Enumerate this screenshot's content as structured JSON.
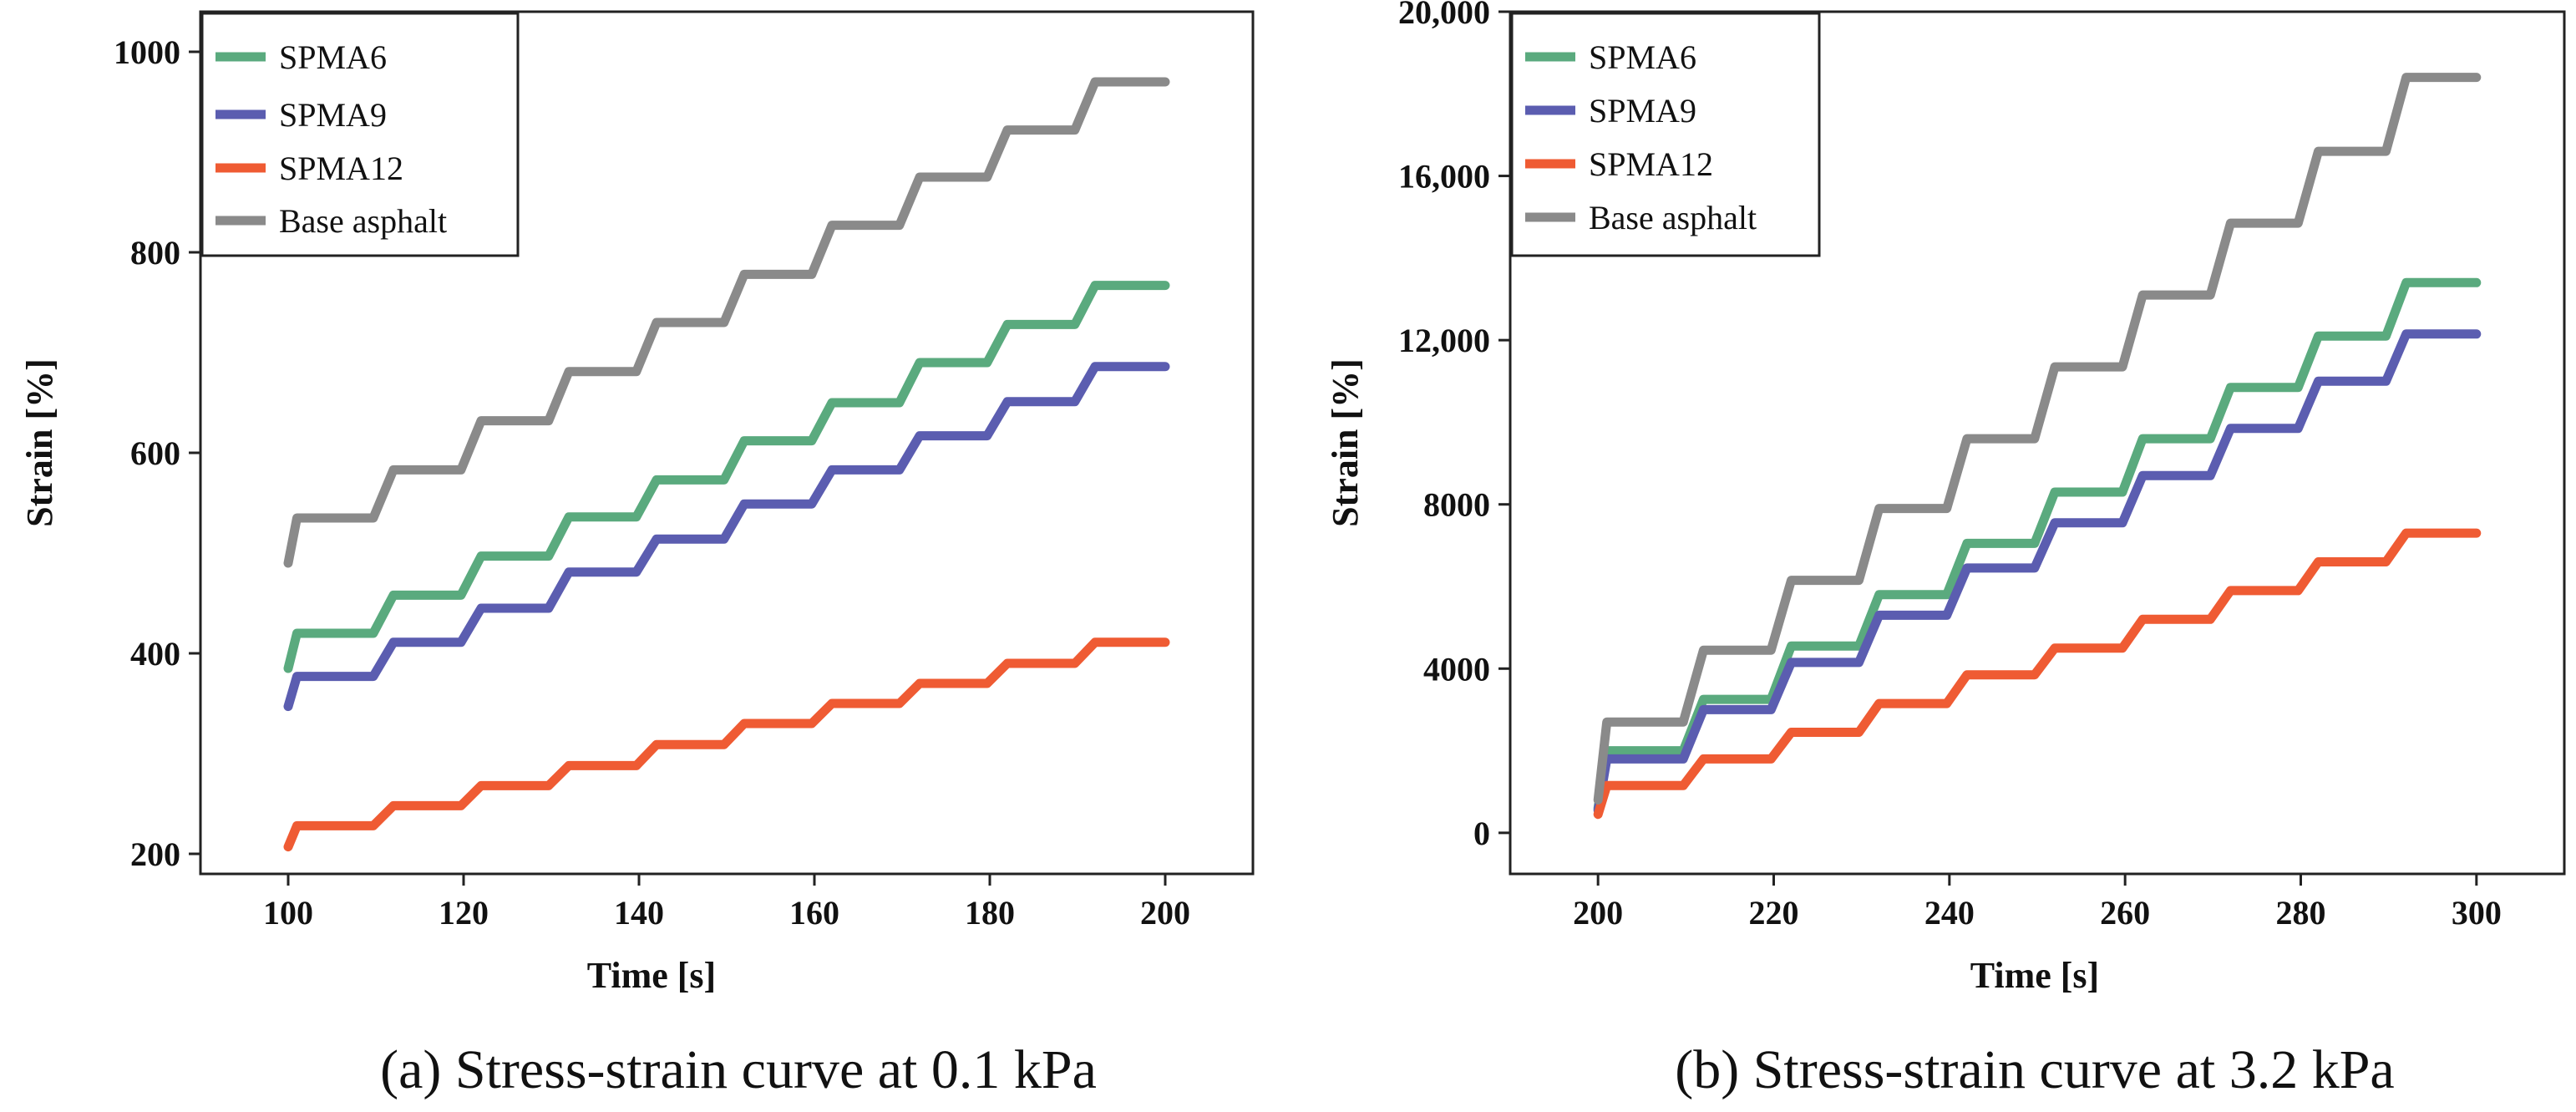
{
  "chart_data": [
    {
      "type": "line",
      "caption": "(a) Stress-strain curve at 0.1 kPa",
      "xlabel": "Time [s]",
      "ylabel": "Strain [%]",
      "xlim": [
        90,
        210
      ],
      "ylim": [
        180,
        1040
      ],
      "xticks": [
        100,
        120,
        140,
        160,
        180,
        200
      ],
      "xtick_labels": [
        "100",
        "120",
        "140",
        "160",
        "180",
        "200"
      ],
      "yticks": [
        200,
        400,
        600,
        800,
        1000
      ],
      "ytick_labels": [
        "200",
        "400",
        "600",
        "800",
        "1000"
      ],
      "x_start": 100,
      "x_end": 200,
      "step_period": 10,
      "grid": false,
      "legend_position": "top-left",
      "series": [
        {
          "name": "SPMA6",
          "color": "#5aaa7e",
          "start": 385,
          "levels": [
            420,
            458,
            497,
            536,
            573,
            612,
            650,
            690,
            728,
            767
          ]
        },
        {
          "name": "SPMA9",
          "color": "#5b5db0",
          "start": 347,
          "levels": [
            377,
            411,
            445,
            481,
            514,
            549,
            583,
            617,
            651,
            686
          ]
        },
        {
          "name": "SPMA12",
          "color": "#ef5b33",
          "start": 207,
          "levels": [
            228,
            248,
            268,
            288,
            309,
            330,
            350,
            370,
            390,
            411
          ]
        },
        {
          "name": "Base asphalt",
          "color": "#8a8a8a",
          "start": 490,
          "levels": [
            535,
            583,
            632,
            681,
            730,
            778,
            827,
            875,
            922,
            970
          ]
        }
      ]
    },
    {
      "type": "line",
      "caption": "(b) Stress-strain curve at 3.2 kPa",
      "xlabel": "Time [s]",
      "ylabel": "Strain [%]",
      "xlim": [
        190,
        310
      ],
      "ylim": [
        -1000,
        20000
      ],
      "xticks": [
        200,
        220,
        240,
        260,
        280,
        300
      ],
      "xtick_labels": [
        "200",
        "220",
        "240",
        "260",
        "280",
        "300"
      ],
      "yticks": [
        0,
        4000,
        8000,
        12000,
        16000,
        20000
      ],
      "ytick_labels": [
        "0",
        "4000",
        "8000",
        "12,000",
        "16,000",
        "20,000"
      ],
      "x_start": 200,
      "x_end": 300,
      "step_period": 10,
      "grid": false,
      "legend_position": "top-left",
      "series": [
        {
          "name": "SPMA6",
          "color": "#5aaa7e",
          "start": 600,
          "levels": [
            2000,
            3250,
            4550,
            5800,
            7050,
            8300,
            9600,
            10850,
            12100,
            13400
          ]
        },
        {
          "name": "SPMA9",
          "color": "#5b5db0",
          "start": 550,
          "levels": [
            1800,
            3000,
            4150,
            5300,
            6450,
            7550,
            8700,
            9850,
            11000,
            12150
          ]
        },
        {
          "name": "SPMA12",
          "color": "#ef5b33",
          "start": 450,
          "levels": [
            1150,
            1800,
            2450,
            3150,
            3850,
            4500,
            5200,
            5900,
            6600,
            7300
          ]
        },
        {
          "name": "Base asphalt",
          "color": "#8a8a8a",
          "start": 800,
          "levels": [
            2700,
            4450,
            6150,
            7900,
            9600,
            11350,
            13100,
            14850,
            16600,
            18400
          ]
        }
      ]
    }
  ]
}
